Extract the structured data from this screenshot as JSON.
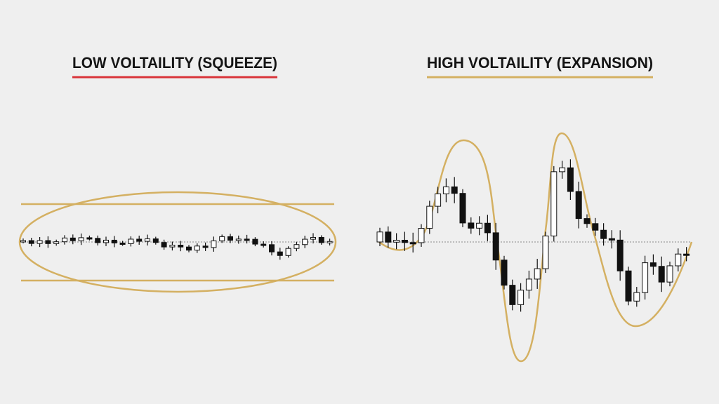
{
  "panels": [
    {
      "title": "LOW VOLTAILITY (SQUEEZE)"
    },
    {
      "title": "HIGH VOLTAILITY (EXPANSION)"
    }
  ]
}
